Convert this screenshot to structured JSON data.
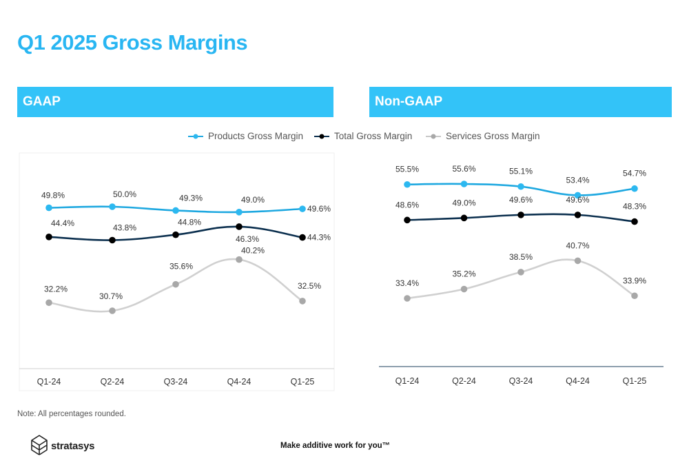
{
  "page": {
    "title": "Q1 2025 Gross Margins",
    "note": "Note: All percentages rounded.",
    "brand": "stratasys",
    "tagline": "Make additive work for you™"
  },
  "sections": {
    "gaap": "GAAP",
    "nongaap": "Non-GAAP"
  },
  "legend": [
    {
      "name": "Products Gross Margin",
      "color": "#1ea8e0"
    },
    {
      "name": "Total Gross Margin",
      "color": "#0b2f4e"
    },
    {
      "name": "Services Gross Margin",
      "color": "#c8c8c8"
    }
  ],
  "chart_data": [
    {
      "type": "line",
      "panel": "GAAP",
      "categories": [
        "Q1-24",
        "Q2-24",
        "Q3-24",
        "Q4-24",
        "Q1-25"
      ],
      "series": [
        {
          "name": "Products Gross Margin",
          "color": "#1ea8e0",
          "marker": "#2cb8f0",
          "values": [
            49.8,
            50.0,
            49.3,
            49.0,
            49.6
          ],
          "labels": [
            "49.8%",
            "50.0%",
            "49.3%",
            "49.0%",
            "49.6%"
          ]
        },
        {
          "name": "Total Gross Margin",
          "color": "#0b2f4e",
          "marker": "#000000",
          "values": [
            44.4,
            43.8,
            44.8,
            46.3,
            44.3
          ],
          "labels": [
            "44.4%",
            "43.8%",
            "44.8%",
            "46.3%",
            "44.3%"
          ]
        },
        {
          "name": "Services Gross Margin",
          "color": "#d0d0d0",
          "marker": "#a8a8a8",
          "values": [
            32.2,
            30.7,
            35.6,
            40.2,
            32.5
          ],
          "labels": [
            "32.2%",
            "30.7%",
            "35.6%",
            "40.2%",
            "32.5%"
          ]
        }
      ]
    },
    {
      "type": "line",
      "panel": "Non-GAAP",
      "categories": [
        "Q1-24",
        "Q2-24",
        "Q3-24",
        "Q4-24",
        "Q1-25"
      ],
      "series": [
        {
          "name": "Products Gross Margin",
          "color": "#1ea8e0",
          "marker": "#2cb8f0",
          "values": [
            55.5,
            55.6,
            55.1,
            53.4,
            54.7
          ],
          "labels": [
            "55.5%",
            "55.6%",
            "55.1%",
            "53.4%",
            "54.7%"
          ]
        },
        {
          "name": "Total Gross Margin",
          "color": "#0b2f4e",
          "marker": "#000000",
          "values": [
            48.6,
            49.0,
            49.6,
            49.6,
            48.3
          ],
          "labels": [
            "48.6%",
            "49.0%",
            "49.6%",
            "49.6%",
            "48.3%"
          ]
        },
        {
          "name": "Services Gross Margin",
          "color": "#d0d0d0",
          "marker": "#a8a8a8",
          "values": [
            33.4,
            35.2,
            38.5,
            40.7,
            33.9
          ],
          "labels": [
            "33.4%",
            "35.2%",
            "38.5%",
            "40.7%",
            "33.9%"
          ]
        }
      ]
    }
  ]
}
